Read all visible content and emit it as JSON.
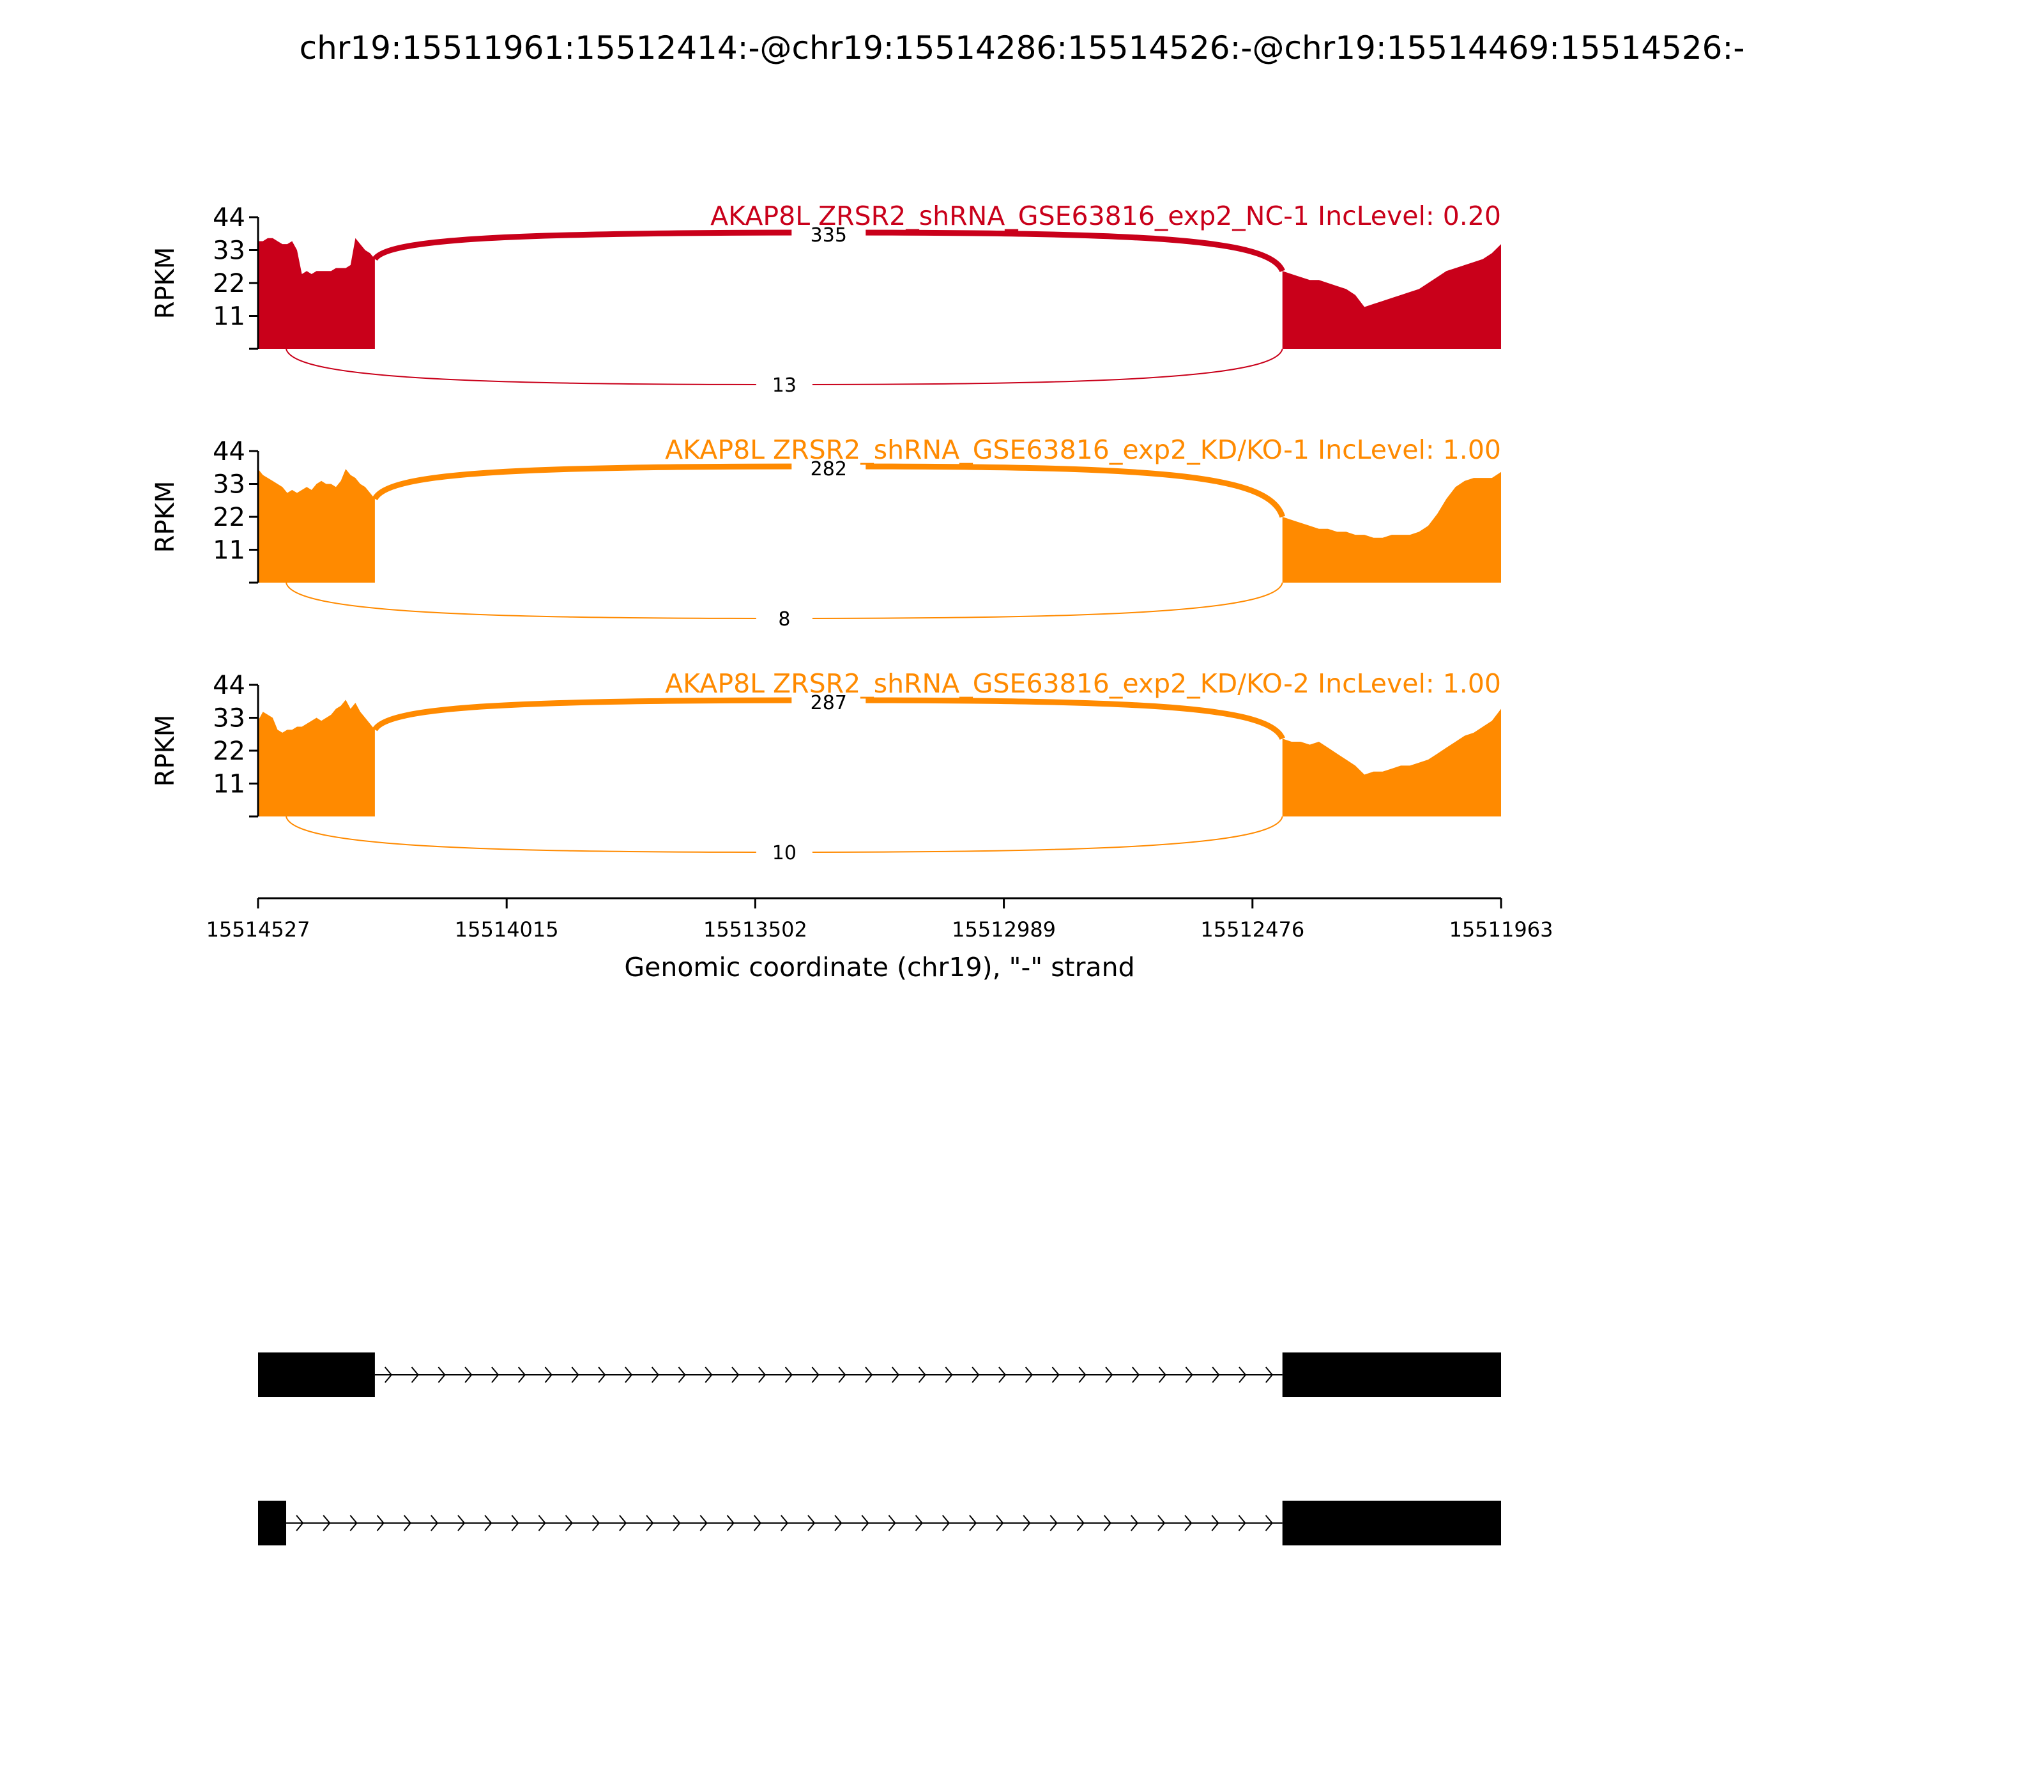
{
  "title": "chr19:15511961:15512414:-@chr19:15514286:15514526:-@chr19:15514469:15514526:-",
  "chart_data": {
    "type": "area",
    "subtype": "sashimi",
    "x_axis": {
      "label": "Genomic coordinate (chr19), \"-\" strand",
      "ticks": [
        "15514527",
        "15514015",
        "15513502",
        "15512989",
        "15512476",
        "15511963"
      ],
      "range": [
        15514527,
        15511963
      ]
    },
    "y_axis": {
      "label": "RPKM",
      "ticks": [
        11,
        22,
        33,
        44
      ],
      "range": [
        0,
        44
      ]
    },
    "tracks": [
      {
        "label": "AKAP8L ZRSR2_shRNA_GSE63816_exp2_NC-1 IncLevel: 0.20",
        "color": "#c9001a",
        "exon1": [
          36,
          36,
          37,
          37,
          36,
          35,
          35,
          36,
          33,
          25,
          26,
          25,
          26,
          26,
          26,
          26,
          27,
          27,
          27,
          28,
          37,
          35,
          33,
          32,
          30
        ],
        "exon2": [
          26,
          25,
          24,
          23,
          23,
          22,
          21,
          20,
          18,
          14,
          15,
          16,
          17,
          18,
          19,
          20,
          22,
          24,
          26,
          27,
          28,
          29,
          30,
          32,
          35
        ],
        "inclusion": {
          "count": "335"
        },
        "skipping": {
          "count": "13"
        }
      },
      {
        "label": "AKAP8L ZRSR2_shRNA_GSE63816_exp2_KD/KO-1 IncLevel: 1.00",
        "color": "#ff8a00",
        "exon1": [
          38,
          36,
          35,
          34,
          33,
          32,
          30,
          31,
          30,
          31,
          32,
          31,
          33,
          34,
          33,
          33,
          32,
          34,
          38,
          36,
          35,
          33,
          32,
          30,
          28
        ],
        "exon2": [
          22,
          21,
          20,
          19,
          18,
          18,
          17,
          17,
          16,
          16,
          15,
          15,
          16,
          16,
          16,
          17,
          19,
          23,
          28,
          32,
          34,
          35,
          35,
          35,
          37
        ],
        "inclusion": {
          "count": "282"
        },
        "skipping": {
          "count": "8"
        }
      },
      {
        "label": "AKAP8L ZRSR2_shRNA_GSE63816_exp2_KD/KO-2 IncLevel: 1.00",
        "color": "#ff8a00",
        "exon1": [
          32,
          35,
          34,
          33,
          29,
          28,
          29,
          29,
          30,
          30,
          31,
          32,
          33,
          32,
          33,
          34,
          36,
          37,
          39,
          36,
          38,
          35,
          33,
          31,
          29
        ],
        "exon2": [
          26,
          25,
          25,
          24,
          25,
          23,
          21,
          19,
          17,
          14,
          15,
          15,
          16,
          17,
          17,
          18,
          19,
          21,
          23,
          25,
          27,
          28,
          30,
          32,
          36
        ],
        "inclusion": {
          "count": "287"
        },
        "skipping": {
          "count": "10"
        }
      }
    ],
    "gene_models": [
      {
        "exons": [
          [
            15514527,
            15514286
          ],
          [
            15512414,
            15511963
          ]
        ],
        "intron_arrows": 34
      },
      {
        "exons": [
          [
            15514527,
            15514469
          ],
          [
            15512414,
            15511963
          ]
        ],
        "intron_arrows": 37
      }
    ]
  }
}
